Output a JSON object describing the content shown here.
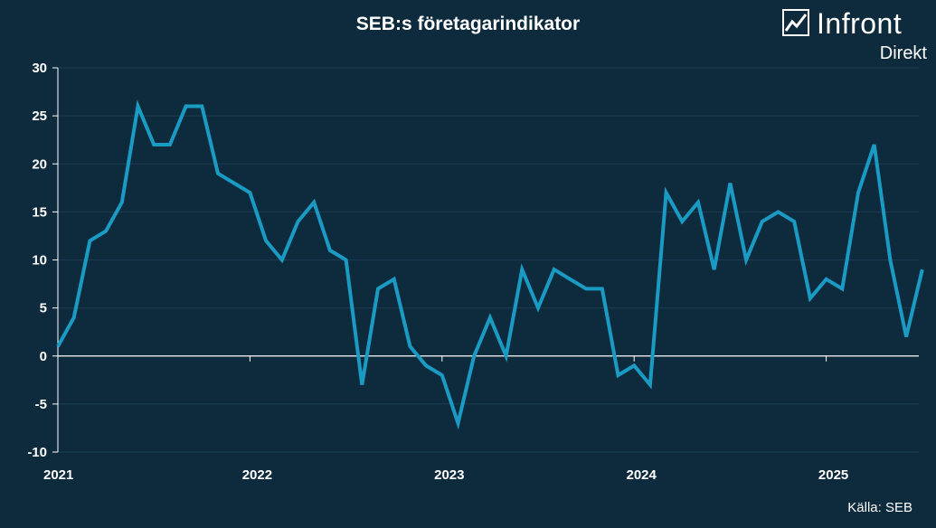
{
  "title": "SEB:s företagarindikator",
  "logo": {
    "name": "Infront",
    "sub": "Direkt"
  },
  "source": "Källa:  SEB",
  "colors": {
    "background": "#0e2b3e",
    "line": "#1a9bc4",
    "text": "#ffffff",
    "axis": "#ffffff"
  },
  "chart_data": {
    "type": "line",
    "title": "SEB:s företagarindikator",
    "xlabel": "",
    "ylabel": "",
    "ylim": [
      -10,
      30
    ],
    "y_ticks": [
      30,
      25,
      20,
      15,
      10,
      5,
      0,
      -5,
      -10
    ],
    "x_tick_labels": [
      "2021",
      "2022",
      "2023",
      "2024",
      "2025"
    ],
    "grid": true,
    "legend": "none",
    "series": [
      {
        "values": [
          1,
          4,
          12,
          13,
          16,
          26,
          22,
          22,
          26,
          26,
          19,
          18,
          17,
          12,
          10,
          14,
          16,
          11,
          10,
          -3,
          7,
          8,
          1,
          -1,
          -2,
          -7,
          0,
          4,
          0,
          9,
          5,
          9,
          8,
          7,
          7,
          -2,
          -1,
          -3,
          17,
          14,
          16,
          9,
          18,
          10,
          14,
          15,
          14,
          6,
          8,
          7,
          17,
          22,
          10,
          2,
          9
        ]
      }
    ]
  }
}
